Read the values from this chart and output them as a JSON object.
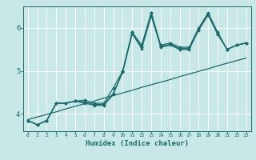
{
  "title": "",
  "xlabel": "Humidex (Indice chaleur)",
  "bg_color": "#c8e8e8",
  "grid_color": "#ffffff",
  "line_color": "#1a6b6b",
  "x_data": [
    0,
    1,
    2,
    3,
    4,
    5,
    6,
    7,
    8,
    9,
    10,
    11,
    12,
    13,
    14,
    15,
    16,
    17,
    18,
    19,
    20,
    21,
    22,
    23
  ],
  "line1": [
    3.85,
    3.75,
    3.85,
    4.25,
    4.25,
    4.3,
    4.25,
    4.2,
    4.2,
    4.45,
    5.0,
    5.9,
    5.55,
    6.35,
    5.55,
    5.6,
    5.5,
    5.5,
    5.95,
    6.3,
    5.85,
    5.5,
    5.6,
    5.65
  ],
  "line2": [
    3.85,
    3.75,
    3.85,
    4.25,
    4.25,
    4.3,
    4.28,
    4.22,
    4.22,
    4.48,
    4.97,
    5.87,
    5.52,
    6.28,
    5.57,
    5.62,
    5.52,
    5.52,
    5.97,
    6.33,
    5.87,
    5.5,
    5.6,
    5.65
  ],
  "line3": [
    3.85,
    3.75,
    3.85,
    4.25,
    4.25,
    4.3,
    4.32,
    4.25,
    4.25,
    4.6,
    5.0,
    5.9,
    5.6,
    6.35,
    5.6,
    5.65,
    5.55,
    5.55,
    6.0,
    6.35,
    5.9,
    5.5,
    5.6,
    5.65
  ],
  "trend": [
    3.87,
    3.93,
    3.99,
    4.05,
    4.12,
    4.18,
    4.24,
    4.3,
    4.37,
    4.43,
    4.49,
    4.55,
    4.62,
    4.68,
    4.74,
    4.8,
    4.87,
    4.93,
    4.99,
    5.05,
    5.12,
    5.18,
    5.24,
    5.3
  ],
  "ylim": [
    3.6,
    6.5
  ],
  "xlim": [
    -0.5,
    23.5
  ],
  "yticks": [
    4,
    5,
    6
  ],
  "xticks": [
    0,
    1,
    2,
    3,
    4,
    5,
    6,
    7,
    8,
    9,
    10,
    11,
    12,
    13,
    14,
    15,
    16,
    17,
    18,
    19,
    20,
    21,
    22,
    23
  ]
}
